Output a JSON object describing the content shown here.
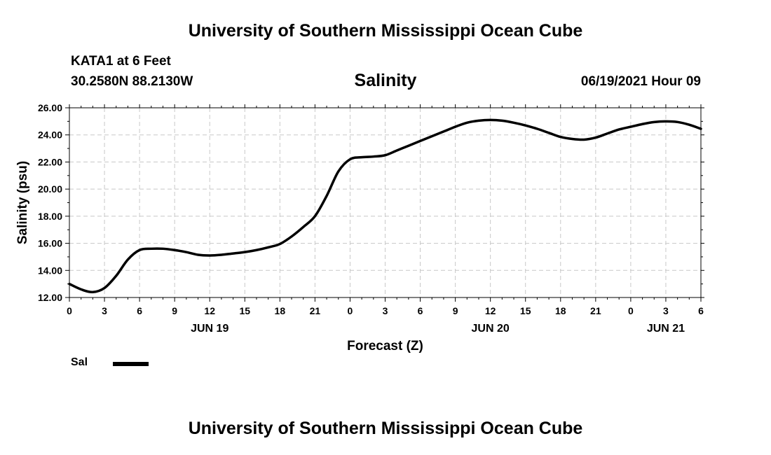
{
  "page": {
    "header_title": "University of Southern Mississippi Ocean Cube",
    "footer_title": "University of Southern Mississippi Ocean Cube",
    "station": "KATA1 at 6 Feet",
    "coordinates": "30.2580N  88.2130W",
    "variable_title": "Salinity",
    "datetime": "06/19/2021 Hour 09"
  },
  "colors": {
    "line": "#000000",
    "grid": "#c8c8c8",
    "axis": "#000000"
  },
  "chart_data": {
    "type": "line",
    "title": "Salinity",
    "xlabel": "Forecast (Z)",
    "ylabel": "Salinity (psu)",
    "ylim": [
      12,
      26
    ],
    "xlim": [
      0,
      54
    ],
    "grid": true,
    "y_ticks": [
      "12.00",
      "14.00",
      "16.00",
      "18.00",
      "20.00",
      "22.00",
      "24.00",
      "26.00"
    ],
    "x_ticks": [
      {
        "hour": 0,
        "label": "0"
      },
      {
        "hour": 3,
        "label": "3"
      },
      {
        "hour": 6,
        "label": "6"
      },
      {
        "hour": 9,
        "label": "9"
      },
      {
        "hour": 12,
        "label": "12"
      },
      {
        "hour": 15,
        "label": "15"
      },
      {
        "hour": 18,
        "label": "18"
      },
      {
        "hour": 21,
        "label": "21"
      },
      {
        "hour": 24,
        "label": "0"
      },
      {
        "hour": 27,
        "label": "3"
      },
      {
        "hour": 30,
        "label": "6"
      },
      {
        "hour": 33,
        "label": "9"
      },
      {
        "hour": 36,
        "label": "12"
      },
      {
        "hour": 39,
        "label": "15"
      },
      {
        "hour": 42,
        "label": "18"
      },
      {
        "hour": 45,
        "label": "21"
      },
      {
        "hour": 48,
        "label": "0"
      },
      {
        "hour": 51,
        "label": "3"
      },
      {
        "hour": 54,
        "label": "6"
      }
    ],
    "day_labels": [
      {
        "hour": 12,
        "label": "JUN 19"
      },
      {
        "hour": 36,
        "label": "JUN 20"
      },
      {
        "hour": 51,
        "label": "JUN 21"
      }
    ],
    "series": [
      {
        "name": "Sal",
        "x": [
          0,
          1,
          2,
          3,
          4,
          5,
          6,
          7,
          8,
          9,
          10,
          11,
          12,
          13,
          14,
          15,
          16,
          17,
          18,
          19,
          20,
          21,
          22,
          23,
          24,
          25,
          26,
          27,
          28,
          29,
          30,
          31,
          32,
          33,
          34,
          35,
          36,
          37,
          38,
          39,
          40,
          41,
          42,
          43,
          44,
          45,
          46,
          47,
          48,
          49,
          50,
          51,
          52,
          53,
          54
        ],
        "values": [
          13.0,
          12.6,
          12.4,
          12.7,
          13.6,
          14.8,
          15.5,
          15.6,
          15.6,
          15.5,
          15.35,
          15.15,
          15.1,
          15.15,
          15.25,
          15.35,
          15.5,
          15.7,
          15.95,
          16.5,
          17.2,
          18.0,
          19.5,
          21.3,
          22.2,
          22.35,
          22.4,
          22.5,
          22.85,
          23.2,
          23.55,
          23.9,
          24.25,
          24.6,
          24.9,
          25.05,
          25.1,
          25.05,
          24.9,
          24.7,
          24.45,
          24.15,
          23.85,
          23.7,
          23.65,
          23.8,
          24.1,
          24.4,
          24.6,
          24.8,
          24.95,
          25.0,
          24.95,
          24.75,
          24.45
        ]
      }
    ],
    "legend": [
      {
        "label": "Sal"
      }
    ]
  }
}
